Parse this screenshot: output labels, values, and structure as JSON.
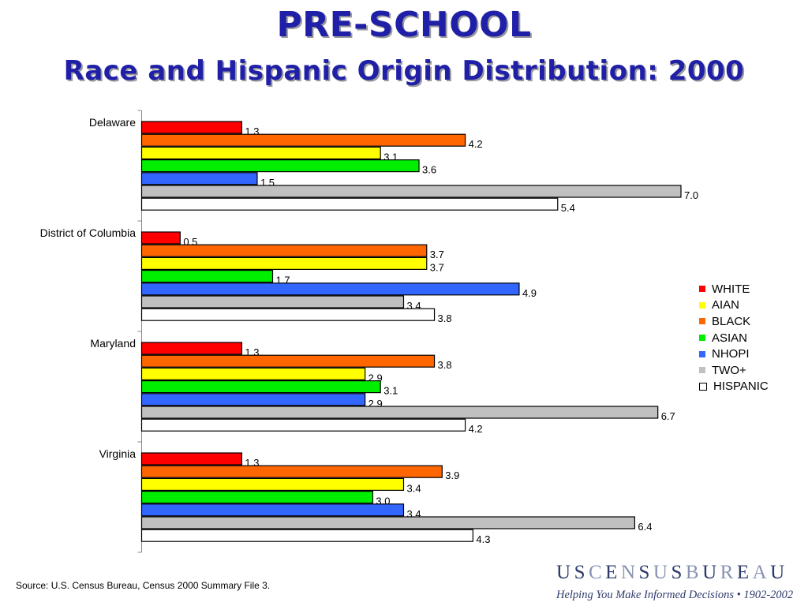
{
  "title": "PRE-SCHOOL",
  "subtitle": "Race and Hispanic Origin Distribution:  2000",
  "source": "Source:  U.S. Census Bureau, Census 2000 Summary File 3.",
  "logo": {
    "parts": [
      {
        "text": "U",
        "accent": false
      },
      {
        "text": "S",
        "accent": false
      },
      {
        "text": "C",
        "accent": true
      },
      {
        "text": "E",
        "accent": false
      },
      {
        "text": "N",
        "accent": true
      },
      {
        "text": "S",
        "accent": false
      },
      {
        "text": "U",
        "accent": true
      },
      {
        "text": "S",
        "accent": false
      },
      {
        "text": "B",
        "accent": true
      },
      {
        "text": "U",
        "accent": false
      },
      {
        "text": "R",
        "accent": true
      },
      {
        "text": "E",
        "accent": false
      },
      {
        "text": "A",
        "accent": true
      },
      {
        "text": "U",
        "accent": false
      }
    ],
    "tagline": "Helping You Make Informed Decisions • 1902-2002"
  },
  "chart_data": {
    "type": "bar",
    "orientation": "horizontal",
    "categories": [
      "Delaware",
      "District of Columbia",
      "Maryland",
      "Virginia"
    ],
    "series": [
      {
        "name": "WHITE",
        "color": "#ff0000",
        "values": [
          1.3,
          0.5,
          1.3,
          1.3
        ],
        "labels": [
          "1.3",
          "0.5",
          "1.3",
          "1.3"
        ]
      },
      {
        "name": "BLACK",
        "color": "#ff6600",
        "values": [
          4.2,
          3.7,
          3.8,
          3.9
        ],
        "labels": [
          "4.2",
          "3.7",
          "3.8",
          "3.9"
        ]
      },
      {
        "name": "AIAN",
        "color": "#ffff00",
        "values": [
          3.1,
          3.7,
          2.9,
          3.4
        ],
        "labels": [
          "3.1",
          "3.7",
          "2.9",
          "3.4"
        ]
      },
      {
        "name": "ASIAN",
        "color": "#00ee00",
        "values": [
          3.6,
          1.7,
          3.1,
          3.0
        ],
        "labels": [
          "3.6",
          "1.7",
          "3.1",
          "3.0"
        ]
      },
      {
        "name": "NHOPI",
        "color": "#3366ff",
        "values": [
          1.5,
          4.9,
          2.9,
          3.4
        ],
        "labels": [
          "1.5",
          "4.9",
          "2.9",
          "3.4"
        ]
      },
      {
        "name": "TWO+",
        "color": "#c0c0c0",
        "values": [
          7.0,
          3.4,
          6.7,
          6.4
        ],
        "labels": [
          "7.0",
          "3.4",
          "6.7",
          "6.4"
        ]
      },
      {
        "name": "HISPANIC",
        "color": "#ffffff",
        "values": [
          5.4,
          3.8,
          4.2,
          4.3
        ],
        "labels": [
          "5.4",
          "3.8",
          "4.2",
          "4.3"
        ]
      }
    ],
    "legend": {
      "position": "right",
      "order": [
        "WHITE",
        "AIAN",
        "BLACK",
        "ASIAN",
        "NHOPI",
        "TWO+",
        "HISPANIC"
      ]
    },
    "xlim": [
      0,
      7.0
    ],
    "grid": false
  }
}
